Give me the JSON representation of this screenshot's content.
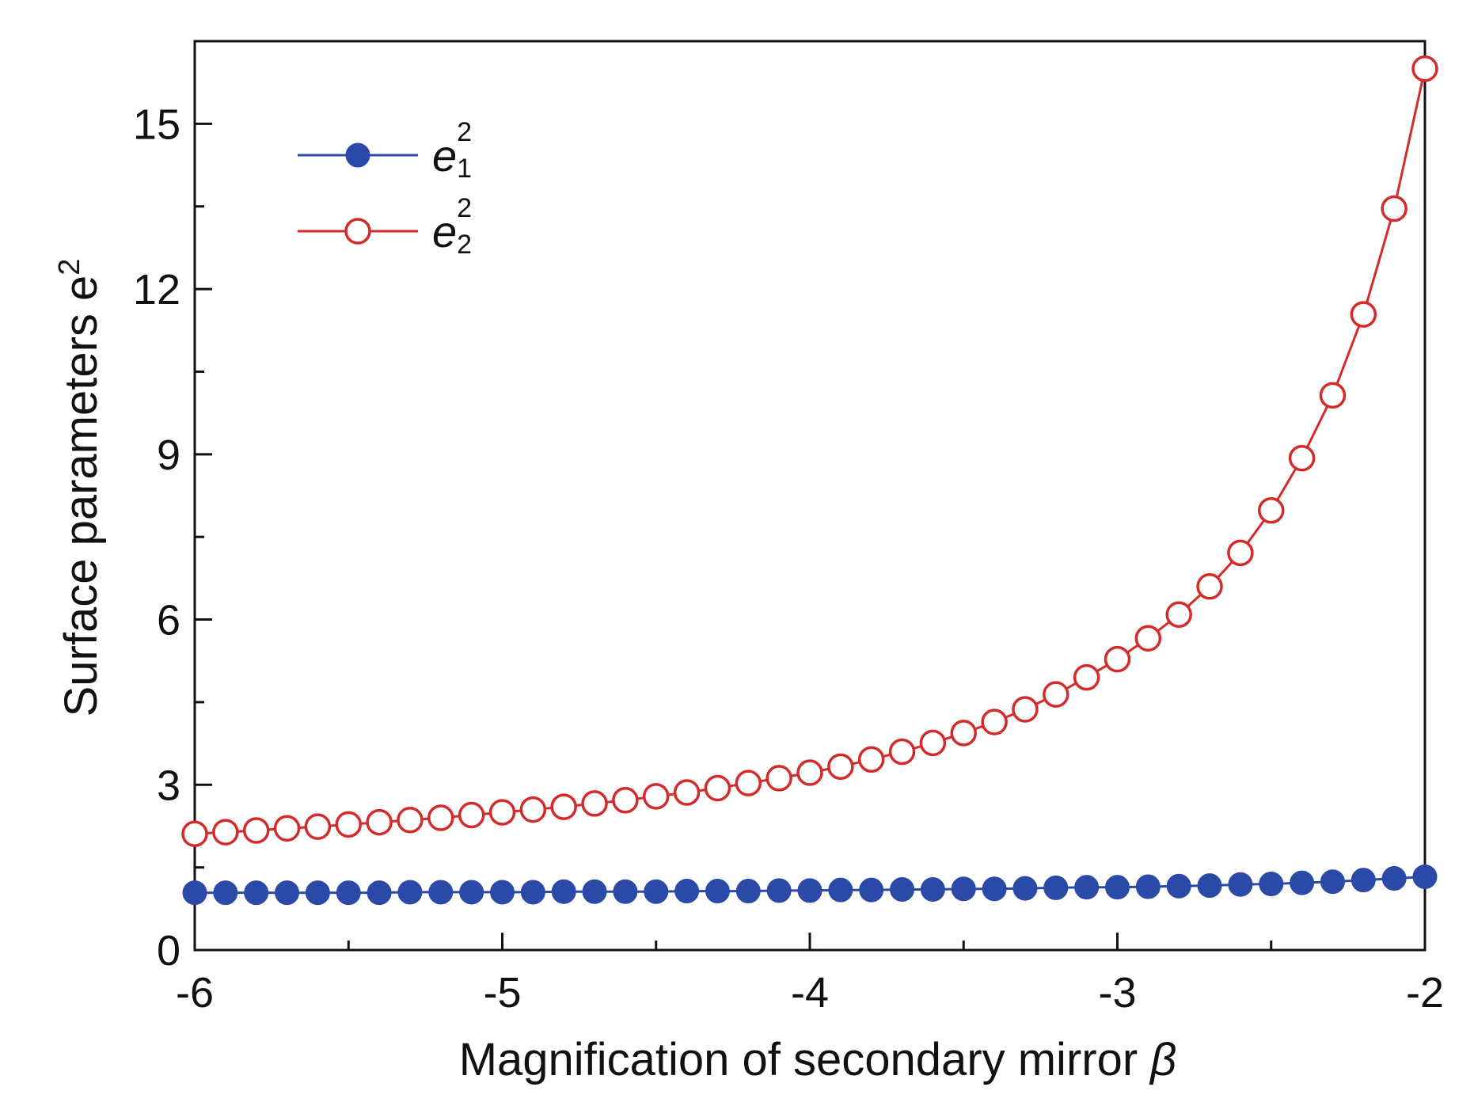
{
  "chart_data": {
    "type": "line",
    "title": "",
    "xlabel": "Magnification of secondary mirror",
    "xlabel_symbol": "β",
    "ylabel": "Surface parameters e",
    "ylabel_sup": "2",
    "xlim": [
      -6,
      -2
    ],
    "ylim": [
      0,
      16.5
    ],
    "xticks": [
      -6,
      -5,
      -4,
      -3,
      -2
    ],
    "xtick_labels": [
      "-6",
      "-5",
      "-4",
      "-3",
      "-2"
    ],
    "yticks": [
      0,
      3,
      6,
      9,
      12,
      15
    ],
    "ytick_labels": [
      "0",
      "3",
      "6",
      "9",
      "12",
      "15"
    ],
    "legend_position": "top-left",
    "x": [
      -6.0,
      -5.9,
      -5.8,
      -5.7,
      -5.6,
      -5.5,
      -5.4,
      -5.3,
      -5.2,
      -5.1,
      -5.0,
      -4.9,
      -4.8,
      -4.7,
      -4.6,
      -4.5,
      -4.4,
      -4.3,
      -4.2,
      -4.1,
      -4.0,
      -3.9,
      -3.8,
      -3.7,
      -3.6,
      -3.5,
      -3.4,
      -3.3,
      -3.2,
      -3.1,
      -3.0,
      -2.9,
      -2.8,
      -2.7,
      -2.6,
      -2.5,
      -2.4,
      -2.3,
      -2.2,
      -2.1,
      -2.0
    ],
    "series": [
      {
        "name": "e",
        "sub": "1",
        "sup": "2",
        "color": "#2b4aa8",
        "marker": "filled-circle",
        "values": [
          1.04,
          1.04,
          1.04,
          1.04,
          1.04,
          1.04,
          1.04,
          1.05,
          1.05,
          1.05,
          1.05,
          1.05,
          1.06,
          1.06,
          1.06,
          1.06,
          1.07,
          1.07,
          1.07,
          1.08,
          1.08,
          1.09,
          1.09,
          1.1,
          1.1,
          1.11,
          1.11,
          1.12,
          1.13,
          1.14,
          1.14,
          1.15,
          1.16,
          1.17,
          1.19,
          1.2,
          1.22,
          1.24,
          1.27,
          1.3,
          1.33
        ]
      },
      {
        "name": "e",
        "sub": "2",
        "sup": "2",
        "color": "#d42a2a",
        "marker": "open-circle",
        "values": [
          2.11,
          2.14,
          2.17,
          2.21,
          2.24,
          2.28,
          2.32,
          2.36,
          2.4,
          2.45,
          2.5,
          2.55,
          2.6,
          2.66,
          2.72,
          2.79,
          2.86,
          2.94,
          3.03,
          3.12,
          3.22,
          3.33,
          3.46,
          3.6,
          3.76,
          3.94,
          4.14,
          4.37,
          4.64,
          4.95,
          5.28,
          5.66,
          6.09,
          6.6,
          7.21,
          7.98,
          8.93,
          10.07,
          11.54,
          13.46,
          16.0
        ]
      }
    ]
  }
}
